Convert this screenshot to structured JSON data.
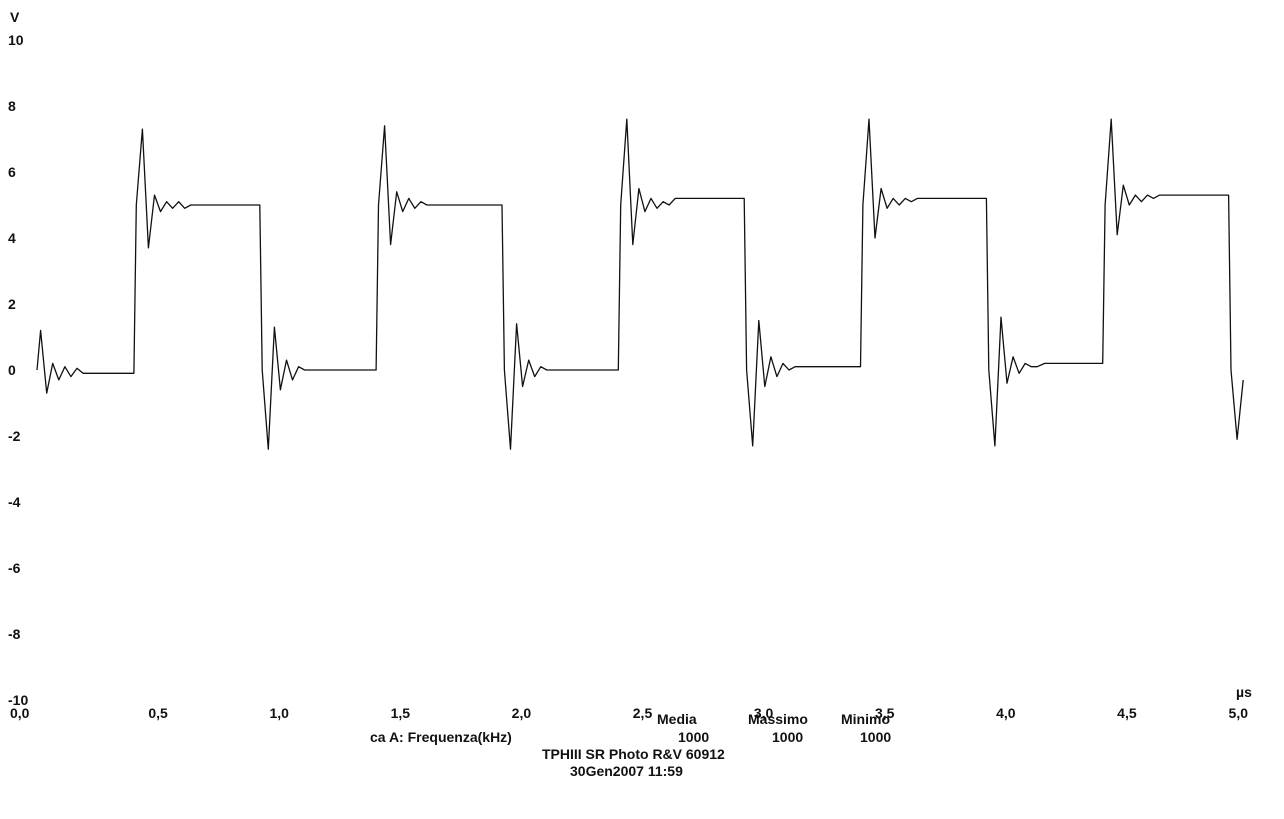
{
  "chart_data": {
    "type": "line",
    "ylabel": "V",
    "xlabel": "µs",
    "xlim": [
      0,
      5
    ],
    "ylim": [
      -10,
      10
    ],
    "x_ticks": [
      "0,0",
      "0,5",
      "1,0",
      "1,5",
      "2,0",
      "2,5",
      "3,0",
      "3,5",
      "4,0",
      "4,5",
      "5,0"
    ],
    "y_ticks": [
      "10",
      "8",
      "6",
      "4",
      "2",
      "0",
      "-2",
      "-4",
      "-6",
      "-8",
      "-10"
    ],
    "grid": false,
    "series": [
      {
        "x": [
          0.0,
          0.015,
          0.04,
          0.065,
          0.09,
          0.115,
          0.14,
          0.165,
          0.19,
          0.22,
          0.4,
          0.41,
          0.435,
          0.46,
          0.485,
          0.51,
          0.535,
          0.56,
          0.585,
          0.61,
          0.635,
          0.66,
          0.69,
          0.92,
          0.93,
          0.955,
          0.98,
          1.005,
          1.03,
          1.055,
          1.08,
          1.105,
          1.13,
          1.16,
          1.4,
          1.41,
          1.435,
          1.46,
          1.485,
          1.51,
          1.535,
          1.56,
          1.585,
          1.61,
          1.635,
          1.66,
          1.69,
          1.92,
          1.93,
          1.955,
          1.98,
          2.005,
          2.03,
          2.055,
          2.08,
          2.105,
          2.13,
          2.16,
          2.4,
          2.41,
          2.435,
          2.46,
          2.485,
          2.51,
          2.535,
          2.56,
          2.585,
          2.61,
          2.635,
          2.66,
          2.69,
          2.92,
          2.93,
          2.955,
          2.98,
          3.005,
          3.03,
          3.055,
          3.08,
          3.105,
          3.13,
          3.16,
          3.4,
          3.41,
          3.435,
          3.46,
          3.485,
          3.51,
          3.535,
          3.56,
          3.585,
          3.61,
          3.635,
          3.66,
          3.69,
          3.92,
          3.93,
          3.955,
          3.98,
          4.005,
          4.03,
          4.055,
          4.08,
          4.105,
          4.13,
          4.16,
          4.4,
          4.41,
          4.435,
          4.46,
          4.485,
          4.51,
          4.535,
          4.56,
          4.585,
          4.61,
          4.635,
          4.66,
          4.69,
          4.92,
          4.93,
          4.955,
          4.98
        ],
        "values": [
          0.0,
          1.2,
          -0.7,
          0.2,
          -0.3,
          0.1,
          -0.2,
          0.05,
          -0.1,
          -0.1,
          -0.1,
          5.0,
          7.3,
          3.7,
          5.3,
          4.8,
          5.1,
          4.9,
          5.1,
          4.9,
          5.0,
          5.0,
          5.0,
          5.0,
          0.0,
          -2.4,
          1.3,
          -0.6,
          0.3,
          -0.3,
          0.1,
          0.0,
          0.0,
          0.0,
          0.0,
          5.0,
          7.4,
          3.8,
          5.4,
          4.8,
          5.2,
          4.9,
          5.1,
          5.0,
          5.0,
          5.0,
          5.0,
          5.0,
          0.0,
          -2.4,
          1.4,
          -0.5,
          0.3,
          -0.2,
          0.1,
          0.0,
          0.0,
          0.0,
          0.0,
          5.0,
          7.6,
          3.8,
          5.5,
          4.8,
          5.2,
          4.9,
          5.1,
          5.0,
          5.2,
          5.2,
          5.2,
          5.2,
          0.0,
          -2.3,
          1.5,
          -0.5,
          0.4,
          -0.2,
          0.2,
          0.0,
          0.1,
          0.1,
          0.1,
          5.0,
          7.6,
          4.0,
          5.5,
          4.9,
          5.2,
          5.0,
          5.2,
          5.1,
          5.2,
          5.2,
          5.2,
          5.2,
          0.0,
          -2.3,
          1.6,
          -0.4,
          0.4,
          -0.1,
          0.2,
          0.1,
          0.1,
          0.2,
          0.2,
          5.0,
          7.6,
          4.1,
          5.6,
          5.0,
          5.3,
          5.1,
          5.3,
          5.2,
          5.3,
          5.3,
          5.3,
          5.3,
          0.0,
          -2.1,
          -0.3
        ]
      }
    ]
  },
  "footer": {
    "stats_headers": [
      "Media",
      "Massimo",
      "Minimo"
    ],
    "channel_label": "ca A: Frequenza(kHz)",
    "stats_values": [
      "1000",
      "1000",
      "1000"
    ],
    "instrument": "TPHIII SR Photo R&V 60912",
    "timestamp": "30Gen2007  11:59"
  }
}
